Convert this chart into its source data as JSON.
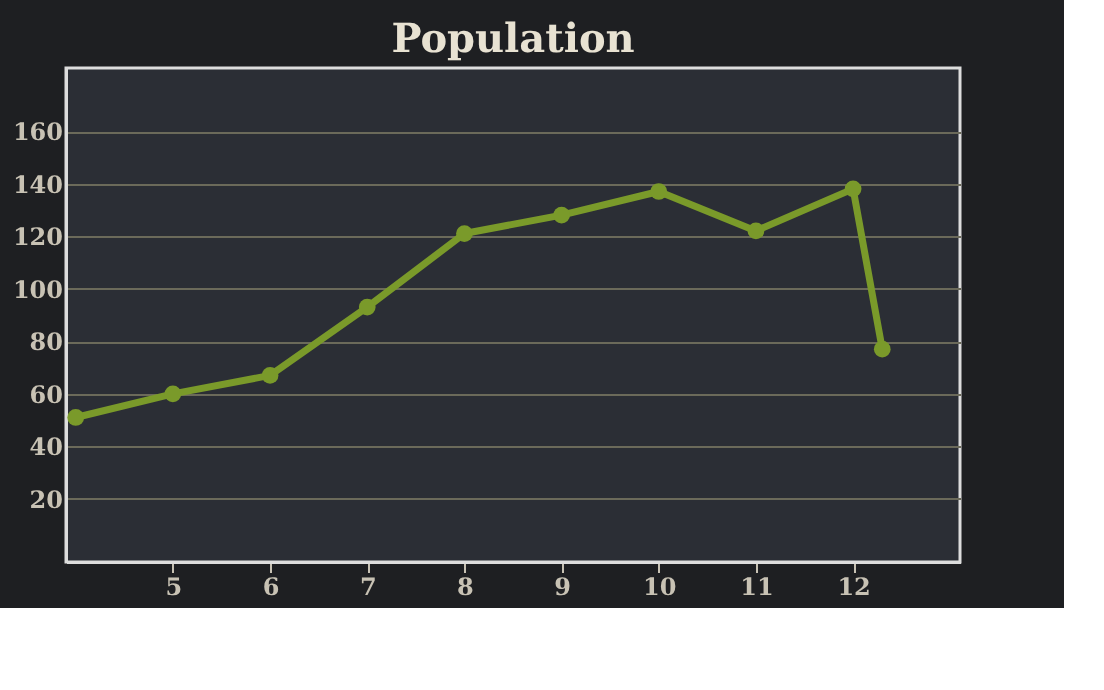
{
  "chart_data": {
    "type": "line",
    "title": "Population",
    "x": [
      4,
      5,
      6,
      7,
      8,
      9,
      10,
      11,
      12,
      12.3
    ],
    "series": [
      {
        "color": "#7a9a2a",
        "values": [
          51,
          60,
          67,
          93,
          121,
          128,
          137,
          122,
          138,
          77
        ]
      }
    ],
    "xlim": [
      3.9,
      13.1
    ],
    "xticks": [
      5,
      6,
      7,
      8,
      9,
      10,
      11,
      12
    ],
    "ylim": [
      -4,
      184
    ],
    "yticks": [
      20,
      40,
      60,
      80,
      100,
      120,
      140,
      160
    ],
    "grid": "y",
    "marker": "circle",
    "line_style": "solid"
  }
}
